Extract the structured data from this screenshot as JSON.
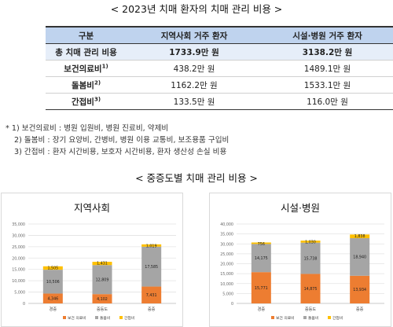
{
  "top_title": "< 2023년 치매 환자의 치매 관리 비용 >",
  "table": {
    "headers": [
      "구분",
      "지역사회 거주 환자",
      "시설·병원 거주 환자"
    ],
    "rows": [
      {
        "label": "총 치매 관리 비용",
        "sup": "",
        "community": "1733.9만 원",
        "facility": "3138.2만 원"
      },
      {
        "label": "보건의료비",
        "sup": "1)",
        "community": "438.2만 원",
        "facility": "1489.1만 원"
      },
      {
        "label": "돌봄비",
        "sup": "2)",
        "community": "1162.2만 원",
        "facility": "1533.1만 원"
      },
      {
        "label": "간접비",
        "sup": "3)",
        "community": "133.5만 원",
        "facility": "116.0만 원"
      }
    ]
  },
  "notes": [
    "* 1) 보건의료비 : 병원 입원비, 병원 진료비, 약제비",
    "2) 돌봄비 : 장기 요양비, 간병비, 병원 이용 교통비, 보조용품 구입비",
    "3) 간접비 : 환자 시간비용, 보호자 시간비용, 환자 생산성 손실 비용"
  ],
  "section_title": "< 중증도별 치매 관리 비용 >",
  "colors": {
    "healthcare": "#ed7d31",
    "care": "#a5a5a5",
    "indirect": "#ffc000"
  },
  "chart_data": [
    {
      "type": "bar",
      "stacked": true,
      "title": "지역사회",
      "categories": [
        "경증",
        "중등도",
        "중증"
      ],
      "series": [
        {
          "name": "보건 의료비",
          "values": [
            4346,
            4102,
            7431
          ]
        },
        {
          "name": "돌봄비",
          "values": [
            10506,
            12809,
            17585
          ]
        },
        {
          "name": "간접비",
          "values": [
            1505,
            1431,
            1019
          ]
        }
      ],
      "ylim": [
        0,
        35000
      ],
      "yticks": [
        "0",
        "5,000",
        "10,000",
        "15,000",
        "20,000",
        "25,000",
        "30,000",
        "35,000"
      ],
      "legend": "bottom"
    },
    {
      "type": "bar",
      "stacked": true,
      "title": "시설·병원",
      "categories": [
        "경증",
        "중등도",
        "중증"
      ],
      "series": [
        {
          "name": "보건 의료비",
          "values": [
            15771,
            14875,
            13934
          ]
        },
        {
          "name": "돌봄비",
          "values": [
            14175,
            15738,
            18940
          ]
        },
        {
          "name": "간접비",
          "values": [
            756,
            1030,
            1838
          ]
        }
      ],
      "ylim": [
        0,
        40000
      ],
      "yticks": [
        "0",
        "5,000",
        "10,000",
        "15,000",
        "20,000",
        "25,000",
        "30,000",
        "35,000",
        "40,000"
      ],
      "legend": "bottom"
    }
  ]
}
